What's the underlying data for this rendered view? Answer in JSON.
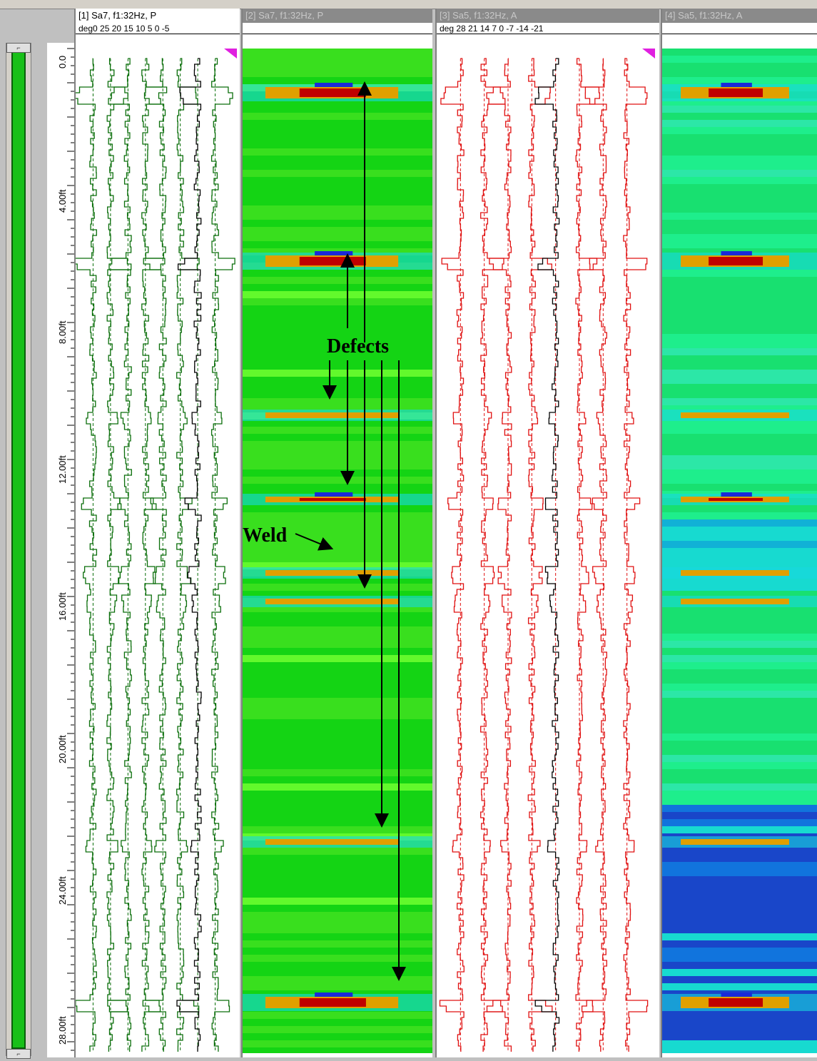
{
  "channels": [
    {
      "title": "[1] Sa7, f1:32Hz, P",
      "scale": "deg0 25 20 15 10 5  0  -5",
      "active": true
    },
    {
      "title": "[2] Sa7, f1:32Hz, P",
      "scale": "",
      "active": false
    },
    {
      "title": "[3] Sa5, f1:32Hz, A",
      "scale": "deg 28  21  14  7   0   -7  -14 -21",
      "active": false
    },
    {
      "title": "[4] Sa5, f1:32Hz, A",
      "scale": "",
      "active": false
    }
  ],
  "depth_axis": {
    "labels": [
      "0.0",
      "4.00ft",
      "8.00ft",
      "12.00ft",
      "16.00ft",
      "20.00ft",
      "24.00ft",
      "28.00ft"
    ]
  },
  "annotations": {
    "defects_label": "Defects",
    "weld_label": "Weld"
  },
  "colors": {
    "trace_p": "#0a6e0a",
    "trace_a": "#e01010",
    "trace_center": "#000000",
    "heat_bg_p": "#14d414",
    "heat_bg_a": "#18e070",
    "heat_low": "#1a2ad8",
    "heat_cyan": "#18d8e0",
    "heat_high": "#e0a000",
    "heat_peak": "#c00000"
  }
}
